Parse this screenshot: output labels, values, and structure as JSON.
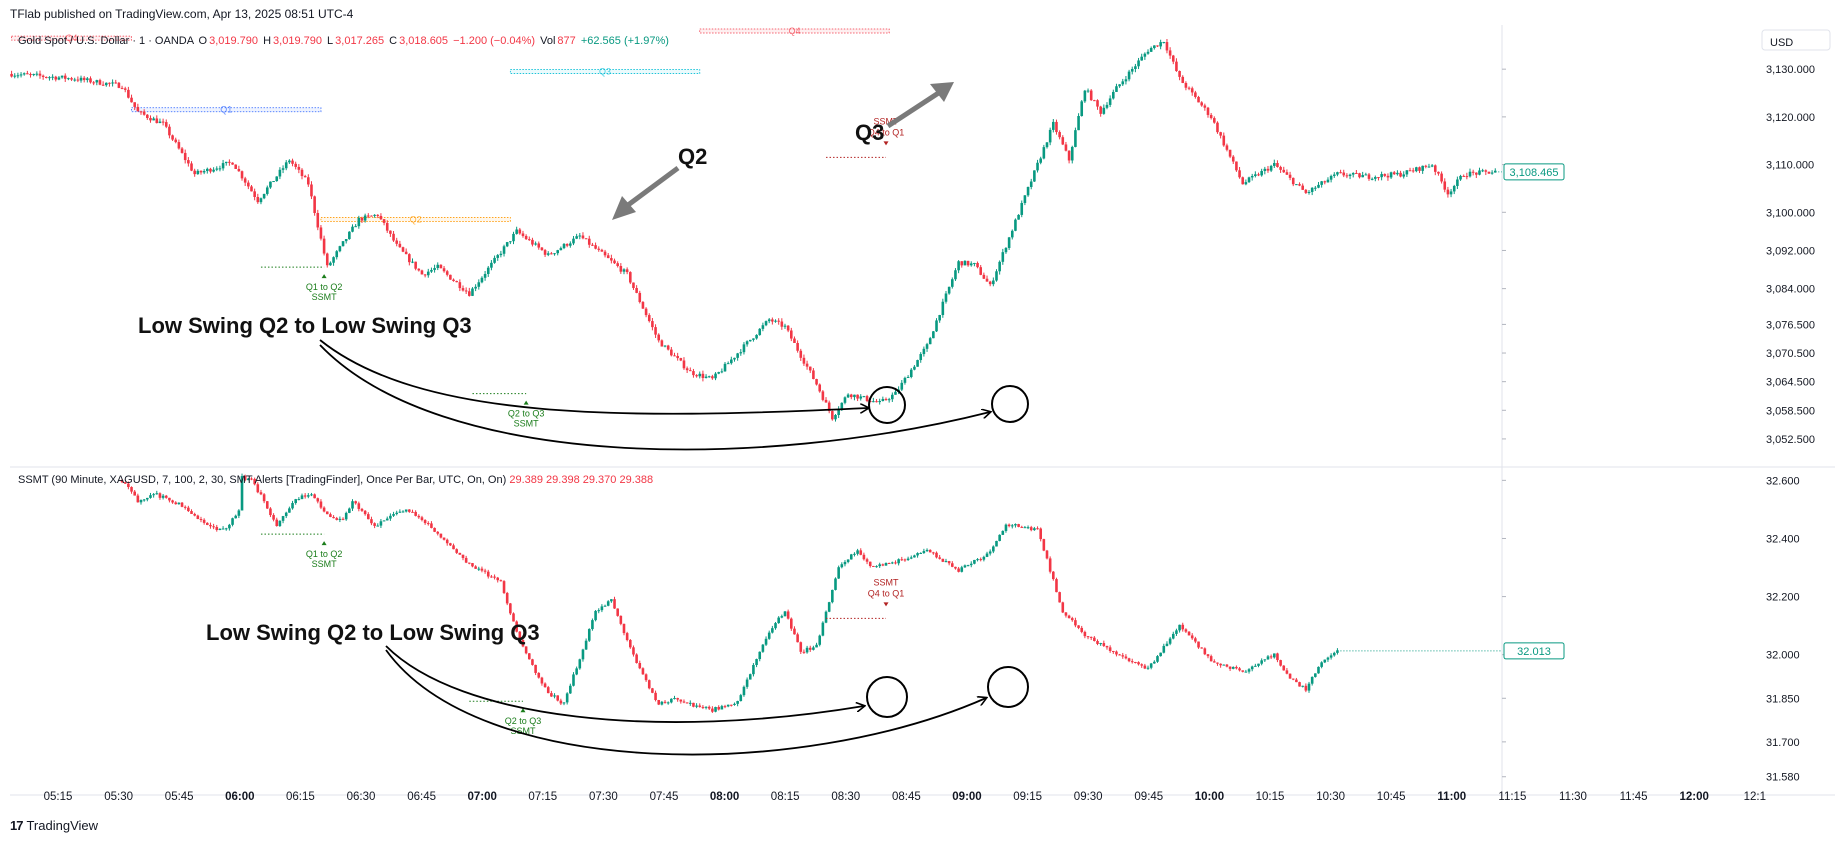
{
  "header": {
    "publisher": "TFlab published on TradingView.com, Apr 13, 2025 08:51 UTC-4",
    "symbol": "Gold Spot / U.S. Dollar · 1 · OANDA",
    "o_label": "O",
    "o_value": "3,019.790",
    "h_label": "H",
    "h_value": "3,019.790",
    "l_label": "L",
    "l_value": "3,017.265",
    "c_label": "C",
    "c_value": "3,018.605",
    "change": "−1.200 (−0.04%)",
    "vol_label": "Vol",
    "vol_value": "877",
    "vol_change": "+62.565 (+1.97%)",
    "currency": "USD"
  },
  "indicator": {
    "label": "SSMT (90 Minute, XAGUSD, 7, 100, 2, 30, SMT Alerts [TradingFinder], Once Per Bar, UTC, On, On)",
    "v1": "29.389",
    "v2": "29.398",
    "v3": "29.370",
    "v4": "29.388"
  },
  "footer": {
    "brand": "TradingView",
    "logo_glyph": "17"
  },
  "colors": {
    "up": "#089981",
    "down": "#f23645",
    "ssmt_green": "#1b7d1b",
    "ssmt_red": "#b22222",
    "q1": "#2962ff",
    "q2": "#ff9800",
    "q3": "#00bcd4",
    "q4": "#f23645"
  },
  "chart_data": [
    {
      "type": "candlestick",
      "title": "Gold Spot / U.S. Dollar · 1 · OANDA",
      "ylabel": "USD",
      "ylim": [
        3048.5,
        3138.0
      ],
      "y_ticks": [
        3130.0,
        3120.0,
        3110.0,
        3100.0,
        3092.0,
        3084.0,
        3076.5,
        3070.5,
        3064.5,
        3058.5,
        3052.5
      ],
      "y_tick_labels": [
        "3,130.000",
        "3,120.000",
        "3,110.000",
        "3,100.000",
        "3,092.000",
        "3,084.000",
        "3,076.500",
        "3,070.500",
        "3,064.500",
        "3,058.500",
        "3,052.500"
      ],
      "price_label": "3,108.465",
      "price_value": 3108.465,
      "x_ticks": [
        "05:15",
        "05:30",
        "05:45",
        "06:00",
        "06:15",
        "06:30",
        "06:45",
        "07:00",
        "07:15",
        "07:30",
        "07:45",
        "08:00",
        "08:15",
        "08:30",
        "08:45",
        "09:00",
        "09:15",
        "09:30",
        "09:45",
        "10:00",
        "10:15",
        "10:30",
        "10:45",
        "11:00",
        "11:15",
        "11:30",
        "11:45",
        "12:00",
        "12:1"
      ],
      "x_bold": [
        "06:00",
        "07:00",
        "08:00",
        "09:00",
        "10:00",
        "11:00",
        "12:00"
      ],
      "anchors": [
        [
          0,
          3129.0
        ],
        [
          20,
          3128.0
        ],
        [
          35,
          3126.5
        ],
        [
          40,
          3121.0
        ],
        [
          48,
          3118.5
        ],
        [
          58,
          3108.0
        ],
        [
          70,
          3110.5
        ],
        [
          78,
          3102.5
        ],
        [
          88,
          3111.0
        ],
        [
          94,
          3106.0
        ],
        [
          100,
          3088.5
        ],
        [
          110,
          3098.5
        ],
        [
          116,
          3099.5
        ],
        [
          122,
          3093.0
        ],
        [
          130,
          3087.0
        ],
        [
          135,
          3088.5
        ],
        [
          145,
          3083.0
        ],
        [
          160,
          3096.0
        ],
        [
          170,
          3091.0
        ],
        [
          180,
          3095.0
        ],
        [
          195,
          3087.0
        ],
        [
          205,
          3073.0
        ],
        [
          215,
          3066.5
        ],
        [
          222,
          3065.0
        ],
        [
          225,
          3067.0
        ],
        [
          240,
          3077.5
        ],
        [
          245,
          3076.0
        ],
        [
          250,
          3070.0
        ],
        [
          255,
          3064.0
        ],
        [
          260,
          3057.0
        ],
        [
          265,
          3062.0
        ],
        [
          275,
          3060.0
        ],
        [
          280,
          3062.0
        ],
        [
          290,
          3072.0
        ],
        [
          300,
          3089.5
        ],
        [
          305,
          3089.0
        ],
        [
          310,
          3084.5
        ],
        [
          315,
          3093.0
        ],
        [
          325,
          3110.0
        ],
        [
          330,
          3118.5
        ],
        [
          335,
          3111.0
        ],
        [
          340,
          3126.0
        ],
        [
          345,
          3121.0
        ],
        [
          350,
          3126.0
        ],
        [
          360,
          3134.0
        ],
        [
          365,
          3136.0
        ],
        [
          370,
          3128.0
        ],
        [
          380,
          3120.0
        ],
        [
          390,
          3106.0
        ],
        [
          400,
          3110.0
        ],
        [
          410,
          3104.0
        ],
        [
          420,
          3108.0
        ],
        [
          430,
          3107.5
        ],
        [
          440,
          3108.0
        ],
        [
          450,
          3110.0
        ],
        [
          455,
          3104.0
        ],
        [
          460,
          3108.0
        ],
        [
          470,
          3108.5
        ]
      ],
      "zones": [
        {
          "label": "Q4",
          "from": 0,
          "to": 38,
          "value": 3136.5,
          "color": "q4"
        },
        {
          "label": "Q1",
          "from": 38,
          "to": 98,
          "value": 3121.5,
          "color": "q1"
        },
        {
          "label": "Q2",
          "from": 98,
          "to": 158,
          "value": 3098.5,
          "color": "q2"
        },
        {
          "label": "Q3",
          "from": 158,
          "to": 218,
          "value": 3129.5,
          "color": "q3"
        },
        {
          "label": "Q4",
          "from": 218,
          "to": 278,
          "value": 3138.0,
          "color": "q4"
        }
      ],
      "ssmt": [
        {
          "text": [
            "Q1 to Q2",
            "SSMT"
          ],
          "from": 79,
          "to": 99,
          "value": 3088.5,
          "color": "ssmt_green",
          "dir": "up"
        },
        {
          "text": [
            "Q2 to Q3",
            "SSMT"
          ],
          "from": 146,
          "to": 163,
          "value": 3062.0,
          "color": "ssmt_green",
          "dir": "up"
        },
        {
          "text": [
            "SSMT",
            "Q4 to Q1"
          ],
          "from": 258,
          "to": 277,
          "value": 3111.5,
          "color": "ssmt_red",
          "dir": "down"
        }
      ],
      "annotations": [
        {
          "text": "Low Swing Q2 to Low Swing Q3"
        },
        {
          "text": "Q2"
        },
        {
          "text": "Q3"
        }
      ]
    },
    {
      "type": "candlestick",
      "title": "SSMT (90 Minute, XAGUSD, 7, 100, 2, 30, SMT Alerts [TradingFinder], Once Per Bar, UTC, On, On)",
      "ylim": [
        31.555,
        32.615
      ],
      "y_ticks": [
        32.6,
        32.4,
        32.2,
        32.0,
        31.85,
        31.7,
        31.58
      ],
      "y_tick_labels": [
        "32.600",
        "32.400",
        "32.200",
        "32.000",
        "31.850",
        "31.700",
        "31.580"
      ],
      "price_label": "32.013",
      "price_value": 32.013,
      "anchors": [
        [
          35,
          32.6
        ],
        [
          40,
          32.53
        ],
        [
          45,
          32.555
        ],
        [
          55,
          32.51
        ],
        [
          60,
          32.46
        ],
        [
          65,
          32.43
        ],
        [
          68,
          32.43
        ],
        [
          72,
          32.5
        ],
        [
          73,
          32.61
        ],
        [
          76,
          32.6
        ],
        [
          80,
          32.53
        ],
        [
          84,
          32.44
        ],
        [
          90,
          32.54
        ],
        [
          95,
          32.55
        ],
        [
          100,
          32.48
        ],
        [
          105,
          32.46
        ],
        [
          108,
          32.53
        ],
        [
          115,
          32.44
        ],
        [
          125,
          32.505
        ],
        [
          135,
          32.42
        ],
        [
          145,
          32.31
        ],
        [
          155,
          32.25
        ],
        [
          160,
          32.08
        ],
        [
          165,
          31.96
        ],
        [
          170,
          31.87
        ],
        [
          175,
          31.83
        ],
        [
          185,
          32.15
        ],
        [
          190,
          32.19
        ],
        [
          198,
          31.97
        ],
        [
          205,
          31.83
        ],
        [
          210,
          31.85
        ],
        [
          215,
          31.83
        ],
        [
          222,
          31.81
        ],
        [
          230,
          31.84
        ],
        [
          240,
          32.08
        ],
        [
          245,
          32.15
        ],
        [
          250,
          32.01
        ],
        [
          255,
          32.03
        ],
        [
          262,
          32.3
        ],
        [
          268,
          32.36
        ],
        [
          272,
          32.3
        ],
        [
          280,
          32.32
        ],
        [
          290,
          32.36
        ],
        [
          300,
          32.29
        ],
        [
          310,
          32.35
        ],
        [
          315,
          32.45
        ],
        [
          325,
          32.43
        ],
        [
          333,
          32.15
        ],
        [
          340,
          32.07
        ],
        [
          350,
          32.0
        ],
        [
          360,
          31.95
        ],
        [
          370,
          32.1
        ],
        [
          380,
          31.98
        ],
        [
          390,
          31.94
        ],
        [
          400,
          32.0
        ],
        [
          405,
          31.92
        ],
        [
          410,
          31.88
        ],
        [
          415,
          31.98
        ],
        [
          420,
          32.01
        ]
      ],
      "ssmt": [
        {
          "text": [
            "Q1 to Q2",
            "SSMT"
          ],
          "from": 79,
          "to": 99,
          "value": 32.415,
          "color": "ssmt_green",
          "dir": "up"
        },
        {
          "text": [
            "Q2 to Q3",
            "SSMT"
          ],
          "from": 145,
          "to": 162,
          "value": 31.84,
          "color": "ssmt_green",
          "dir": "up"
        },
        {
          "text": [
            "SSMT",
            "Q4 to Q1"
          ],
          "from": 258,
          "to": 277,
          "value": 32.125,
          "color": "ssmt_red",
          "dir": "down"
        }
      ],
      "annotations": [
        {
          "text": "Low Swing Q2 to Low Swing Q3"
        }
      ]
    }
  ]
}
